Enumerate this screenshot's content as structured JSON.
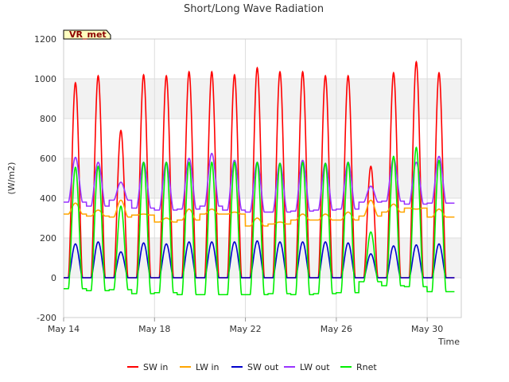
{
  "chart_data": {
    "type": "line",
    "title": "Short/Long Wave Radiation",
    "xlabel": "Time",
    "ylabel": "(W/m2)",
    "site_badge": "VR_met",
    "xlim": [
      14,
      31.5
    ],
    "ylim": [
      -200,
      1200
    ],
    "x_ticks": [
      {
        "label": "May 14",
        "value": 14
      },
      {
        "label": "May 18",
        "value": 18
      },
      {
        "label": "May 22",
        "value": 22
      },
      {
        "label": "May 26",
        "value": 26
      },
      {
        "label": "May 30",
        "value": 30
      }
    ],
    "y_ticks": [
      -200,
      0,
      200,
      400,
      600,
      800,
      1000,
      1200
    ],
    "grid": true,
    "legend_position": "bottom",
    "days": [
      14,
      15,
      16,
      17,
      18,
      19,
      20,
      21,
      22,
      23,
      24,
      25,
      26,
      27,
      28,
      29,
      30
    ],
    "series": [
      {
        "name": "SW in",
        "color": "#ff0000",
        "daily_peak": [
          980,
          1015,
          740,
          1020,
          1015,
          1035,
          1035,
          1020,
          1055,
          1035,
          1035,
          1015,
          1015,
          560,
          1030,
          1085,
          1030
        ],
        "night": 0
      },
      {
        "name": "LW in",
        "color": "#ffa500",
        "daily_peak": [
          375,
          340,
          390,
          320,
          300,
          345,
          345,
          330,
          300,
          280,
          320,
          320,
          330,
          390,
          370,
          345,
          345
        ],
        "night": [
          320,
          310,
          305,
          315,
          280,
          290,
          320,
          320,
          260,
          270,
          290,
          290,
          290,
          310,
          330,
          350,
          305
        ]
      },
      {
        "name": "SW out",
        "color": "#0000cc",
        "daily_peak": [
          170,
          180,
          130,
          175,
          170,
          180,
          180,
          180,
          185,
          180,
          180,
          180,
          175,
          120,
          160,
          165,
          170
        ],
        "night": 0
      },
      {
        "name": "LW out",
        "color": "#9933ff",
        "daily_peak": [
          605,
          580,
          480,
          580,
          580,
          600,
          625,
          590,
          580,
          575,
          590,
          575,
          580,
          460,
          600,
          580,
          610
        ],
        "night": [
          380,
          360,
          390,
          350,
          340,
          345,
          360,
          340,
          330,
          330,
          335,
          340,
          345,
          380,
          385,
          370,
          375
        ]
      },
      {
        "name": "Rnet",
        "color": "#00ee00",
        "daily_peak": [
          555,
          560,
          360,
          580,
          580,
          580,
          580,
          580,
          580,
          575,
          580,
          575,
          580,
          230,
          610,
          655,
          590
        ],
        "night": [
          -55,
          -65,
          -60,
          -80,
          -75,
          -85,
          -85,
          -85,
          -85,
          -80,
          -85,
          -80,
          -75,
          -20,
          -40,
          -45,
          -70
        ]
      }
    ]
  }
}
